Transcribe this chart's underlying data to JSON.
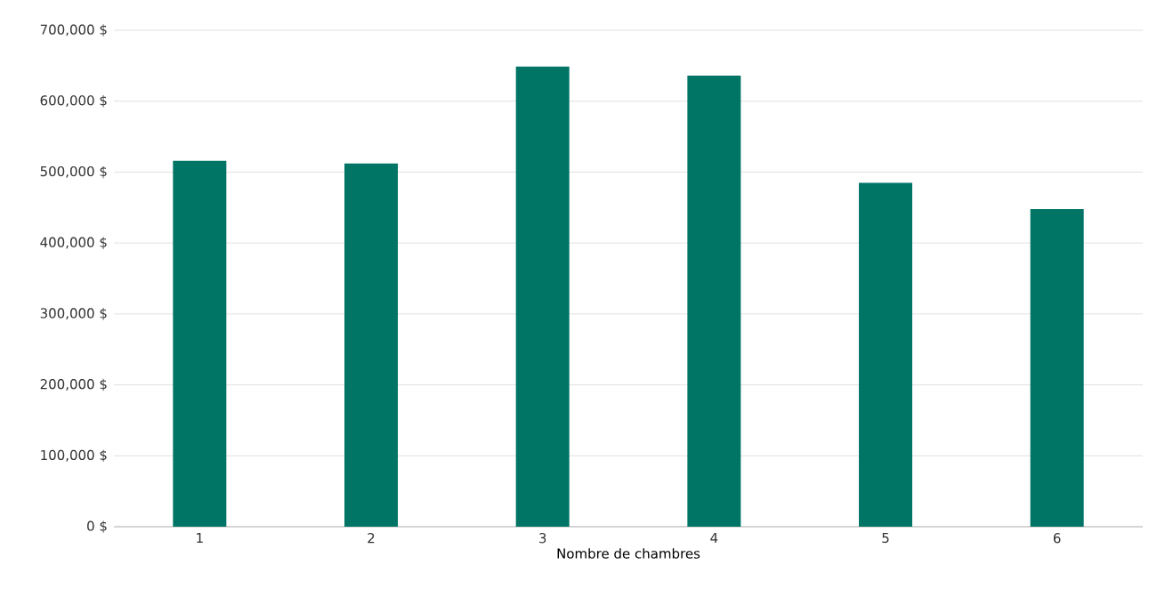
{
  "chart_data": {
    "type": "bar",
    "xlabel": "Nombre de chambres",
    "categories": [
      "1",
      "2",
      "3",
      "4",
      "5",
      "6"
    ],
    "values": [
      516000,
      512000,
      649000,
      636000,
      485000,
      448000
    ],
    "color": "#007566",
    "ylim": [
      0,
      700000
    ],
    "yticks": [
      {
        "value": 0,
        "label": "0 $"
      },
      {
        "value": 100000,
        "label": "100,000 $"
      },
      {
        "value": 200000,
        "label": "200,000 $"
      },
      {
        "value": 300000,
        "label": "300,000 $"
      },
      {
        "value": 400000,
        "label": "400,000 $"
      },
      {
        "value": 500000,
        "label": "500,000 $"
      },
      {
        "value": 600000,
        "label": "600,000 $"
      },
      {
        "value": 700000,
        "label": "700,000 $"
      }
    ],
    "grid": "y"
  }
}
